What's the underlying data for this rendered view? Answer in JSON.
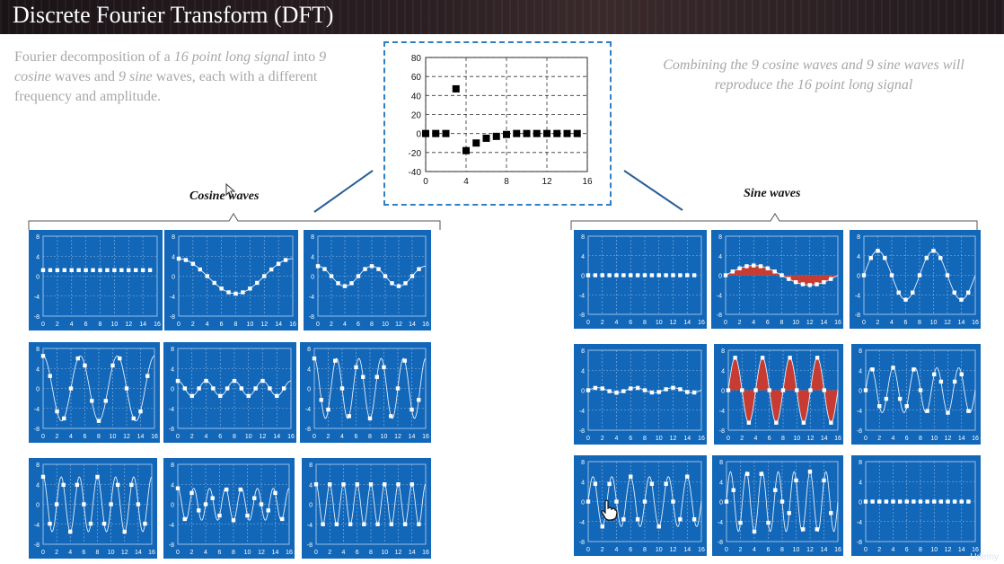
{
  "header": {
    "title": "Discrete Fourier Transform (DFT)"
  },
  "left_description": {
    "p1": "Fourier decomposition of a ",
    "p2": "16 point long signal",
    "p3": " into ",
    "p4": "9 cosine",
    "p5": " waves and ",
    "p6": "9 sine",
    "p7": " waves, each with a different frequency and amplitude."
  },
  "right_description": {
    "p1": "Combining the ",
    "p2": "9 cosine",
    "p3": " waves and ",
    "p4": "9 sine",
    "p5": " waves will reproduce the 16 point long signal"
  },
  "labels": {
    "cosine": "Cosine waves",
    "sine": "Sine waves"
  },
  "watermark": "Udemy",
  "colors": {
    "panel_bg": "#1267b8",
    "highlight_fill": "#d23a2a",
    "accent_border": "#2f7fc2"
  },
  "icons": [
    "mouse-pointer-icon",
    "hand-cursor-icon"
  ],
  "chart_data": [
    {
      "type": "scatter",
      "name": "dft-spectrum",
      "xlim": [
        0,
        16
      ],
      "ylim": [
        -40,
        80
      ],
      "xticks": [
        "0",
        "4",
        "8",
        "12",
        "16"
      ],
      "yticks": [
        "80",
        "60",
        "40",
        "20",
        "0",
        "-20",
        "-40"
      ],
      "points": [
        [
          0,
          0
        ],
        [
          1,
          0
        ],
        [
          2,
          0
        ],
        [
          3,
          47
        ],
        [
          4,
          -18
        ],
        [
          5,
          -10
        ],
        [
          6,
          -5
        ],
        [
          7,
          -3
        ],
        [
          8,
          -1
        ],
        [
          9,
          0
        ],
        [
          10,
          0
        ],
        [
          11,
          0
        ],
        [
          12,
          0
        ],
        [
          13,
          0
        ],
        [
          14,
          0
        ],
        [
          15,
          0
        ]
      ]
    },
    {
      "type": "scatter",
      "group": "cosine",
      "xticks": [
        "0",
        "2",
        "4",
        "6",
        "8",
        "10",
        "12",
        "14",
        "16"
      ],
      "yticks": [
        "8",
        "4",
        "0",
        "-4",
        "-8"
      ],
      "ylim": [
        -8,
        8
      ],
      "panels": [
        {
          "k": 0,
          "amp": 1.2
        },
        {
          "k": 1,
          "amp": 3.5
        },
        {
          "k": 2,
          "amp": 2.0
        },
        {
          "k": 3,
          "amp": 6.5
        },
        {
          "k": 4,
          "amp": 1.5
        },
        {
          "k": 5,
          "amp": 6.0
        },
        {
          "k": 6,
          "amp": 5.5
        },
        {
          "k": 7,
          "amp": 3.2
        },
        {
          "k": 8,
          "amp": 4.0
        }
      ]
    },
    {
      "type": "scatter",
      "group": "sine",
      "xticks": [
        "0",
        "2",
        "4",
        "6",
        "8",
        "10",
        "12",
        "14",
        "16"
      ],
      "yticks": [
        "8",
        "4",
        "0",
        "-4",
        "-8"
      ],
      "ylim": [
        -8,
        8
      ],
      "panels": [
        {
          "k": 0,
          "amp": 0
        },
        {
          "k": 1,
          "amp": 2.0,
          "highlight": true
        },
        {
          "k": 2,
          "amp": 5.0
        },
        {
          "k": 3,
          "amp": 0.5
        },
        {
          "k": 4,
          "amp": 6.5,
          "highlight": true
        },
        {
          "k": 5,
          "amp": 4.5
        },
        {
          "k": 6,
          "amp": 5.0
        },
        {
          "k": 7,
          "amp": 6.0
        },
        {
          "k": 8,
          "amp": 0
        }
      ]
    }
  ]
}
